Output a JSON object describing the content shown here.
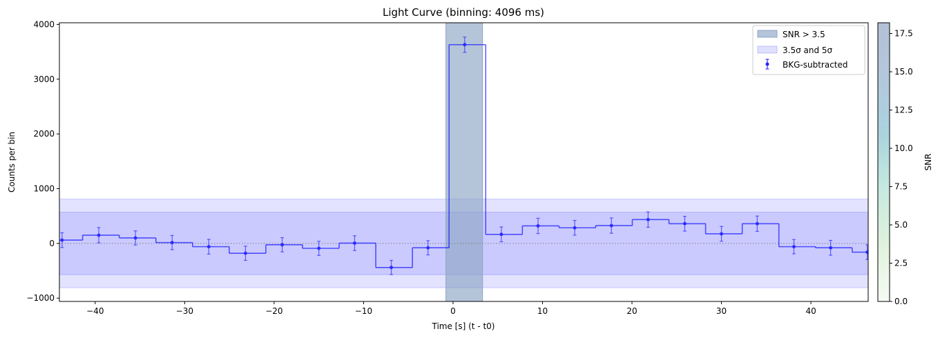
{
  "chart_data": {
    "type": "step",
    "title": "Light Curve (binning: 4096 ms)",
    "xlabel": "Time [s] (t - t0)",
    "ylabel": "Counts per bin",
    "xlim": [
      -44.0,
      46.4
    ],
    "ylim": [
      -1060,
      4030
    ],
    "xticks": [
      -40,
      -30,
      -20,
      -10,
      0,
      10,
      20,
      30,
      40
    ],
    "xtick_labels": [
      "−40",
      "−30",
      "−20",
      "−10",
      "0",
      "10",
      "20",
      "30",
      "40"
    ],
    "yticks": [
      -1000,
      0,
      1000,
      2000,
      3000,
      4000
    ],
    "ytick_labels": [
      "−1000",
      "0",
      "1000",
      "2000",
      "3000",
      "4000"
    ],
    "bin_width": 4.096,
    "bin_start": -45.5,
    "series": [
      {
        "name": "BKG-subtracted",
        "color": "#0000ff",
        "x": [
          -43.7,
          -39.6,
          -35.5,
          -31.4,
          -27.3,
          -23.2,
          -19.1,
          -15.0,
          -11.0,
          -6.9,
          -2.8,
          1.3,
          5.4,
          9.5,
          13.6,
          17.7,
          21.8,
          25.9,
          30.0,
          34.0,
          38.1,
          42.2,
          46.3
        ],
        "y": [
          60,
          150,
          100,
          15,
          -60,
          -180,
          -25,
          -90,
          5,
          -440,
          -80,
          3630,
          165,
          320,
          285,
          325,
          435,
          360,
          175,
          360,
          -60,
          -80,
          -160
        ],
        "yerr": [
          135,
          140,
          130,
          130,
          135,
          130,
          130,
          130,
          135,
          130,
          130,
          140,
          135,
          140,
          135,
          140,
          140,
          135,
          135,
          140,
          130,
          135,
          135
        ]
      }
    ],
    "snr_region": {
      "label": "SNR > 3.5",
      "x_range": [
        -0.8,
        3.3
      ],
      "color": "#8ca5c5"
    },
    "sigma_bands": {
      "label": "3.5σ and 5σ",
      "inner": 570,
      "outer": 810,
      "color": "#0000ff"
    },
    "baseline": 0,
    "legend_position": "upper right",
    "colorbar": {
      "label": "SNR",
      "range": [
        0,
        18.2
      ],
      "ticks": [
        0.0,
        2.5,
        5.0,
        7.5,
        10.0,
        12.5,
        15.0,
        17.5
      ],
      "tick_labels": [
        "0.0",
        "2.5",
        "5.0",
        "7.5",
        "10.0",
        "12.5",
        "15.0",
        "17.5"
      ],
      "colors": [
        "#f6fbf4",
        "#e0f2dc",
        "#c7e9e0",
        "#a9d4de",
        "#b3c7dc",
        "#b3c1d5"
      ]
    }
  }
}
